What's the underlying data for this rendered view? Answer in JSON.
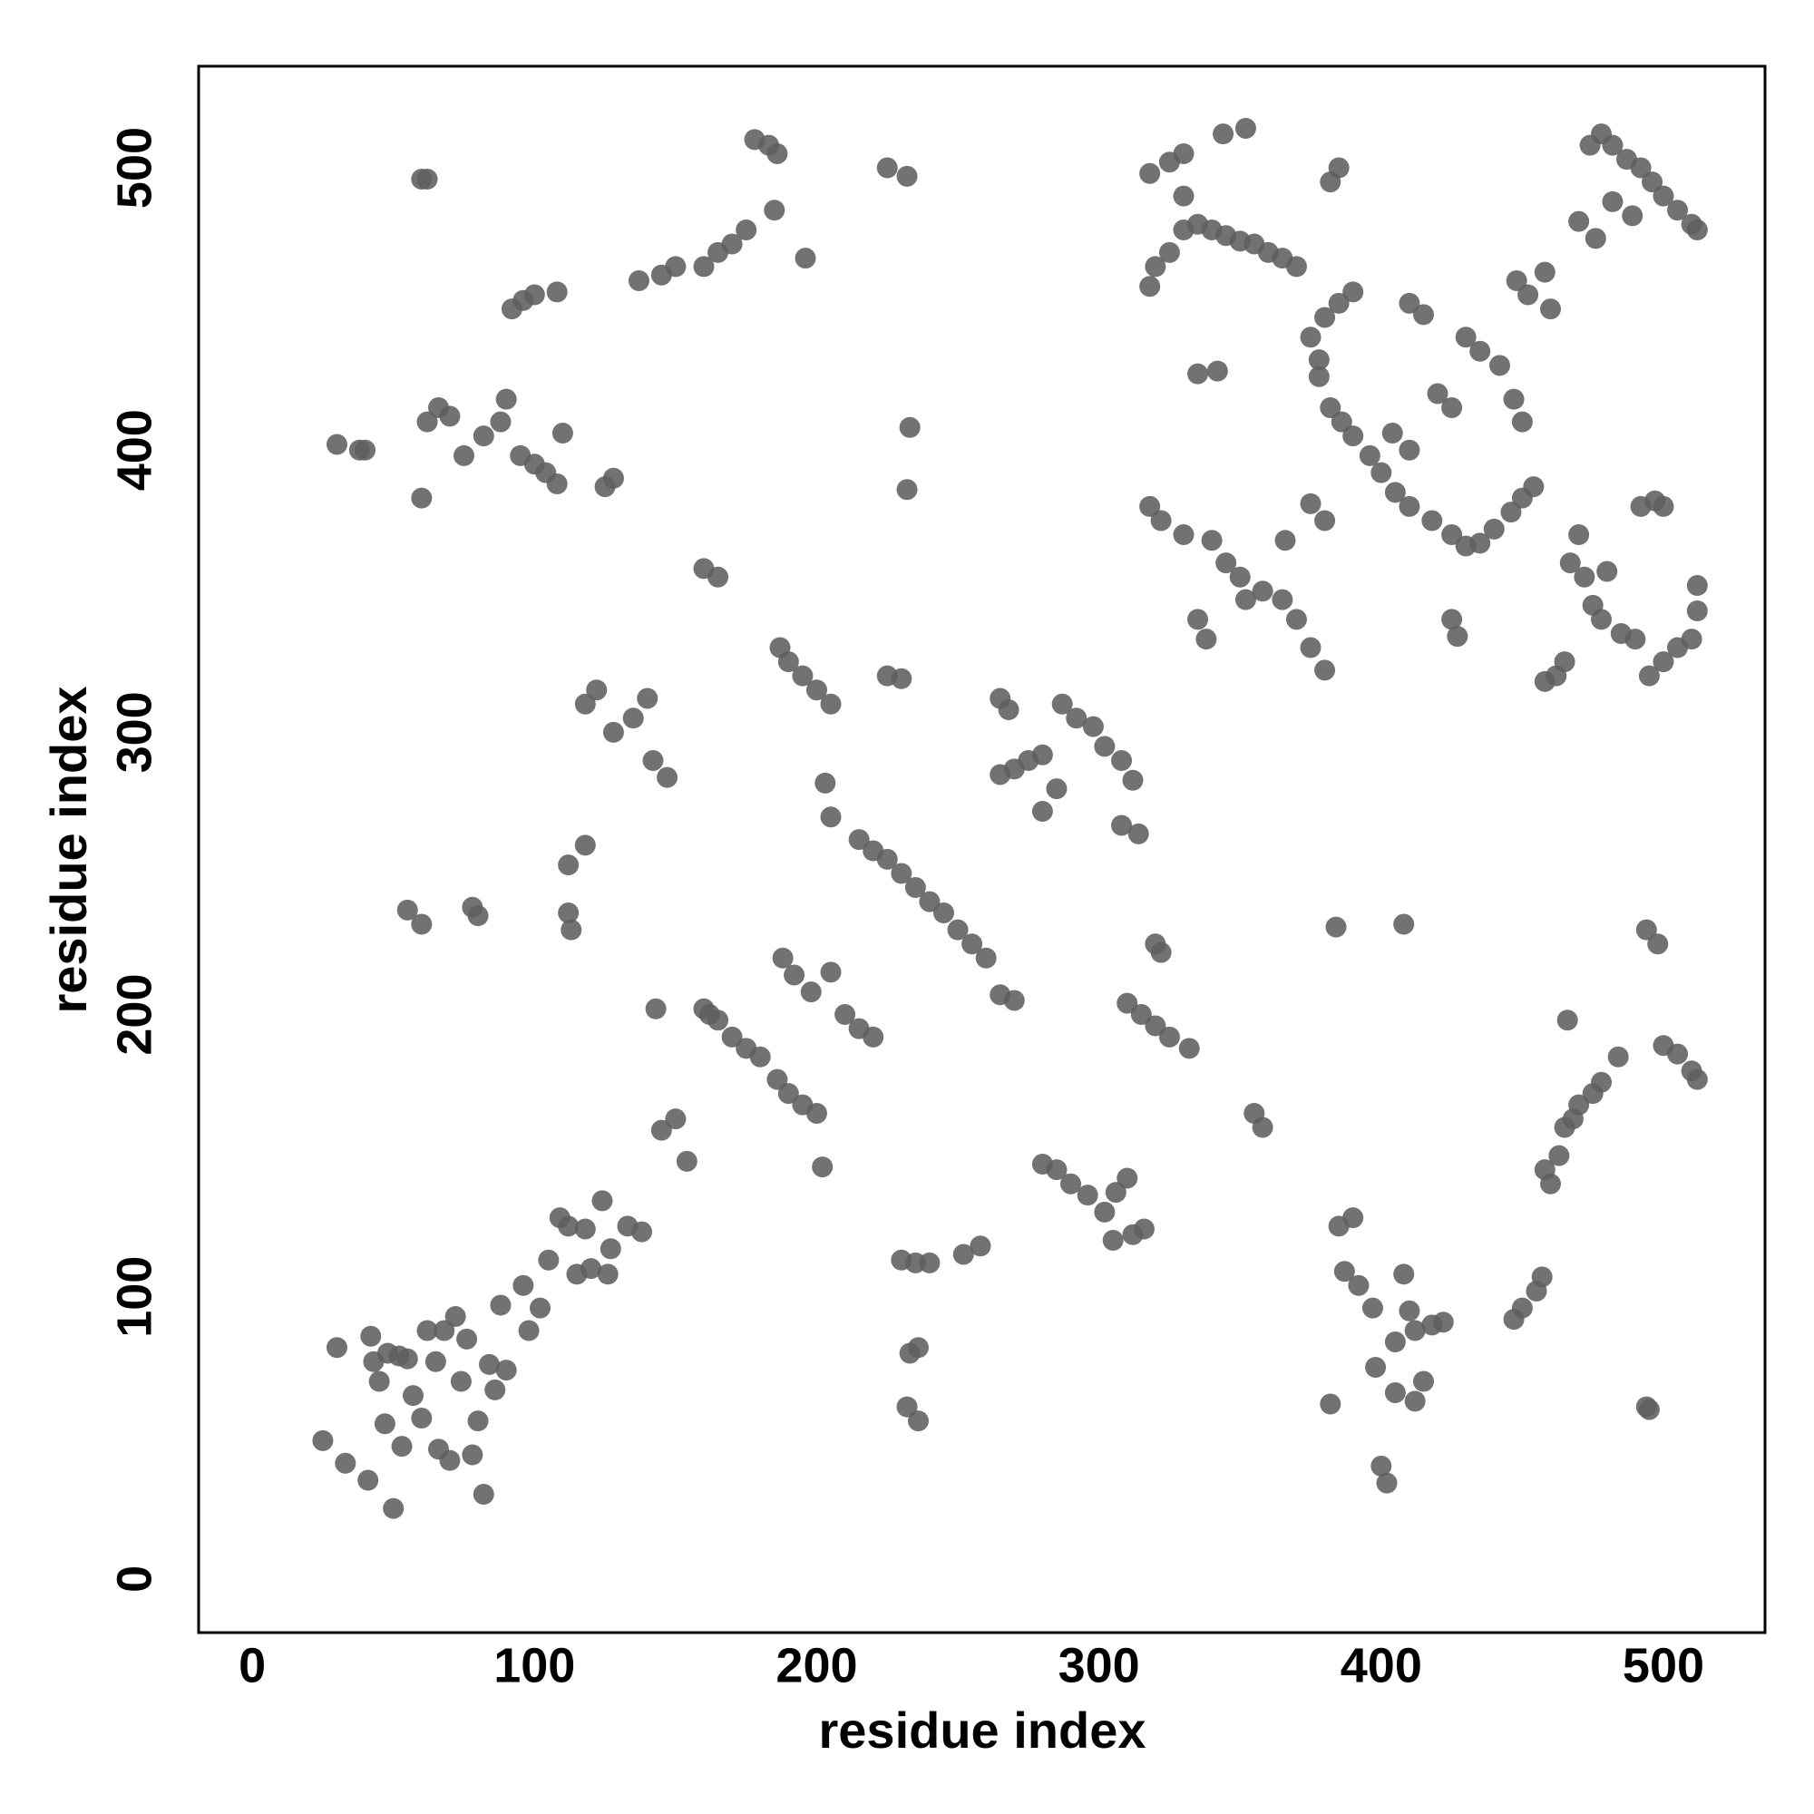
{
  "chart_data": {
    "type": "scatter",
    "x_label": "residue index",
    "y_label": "residue index",
    "xlim": [
      -19,
      536
    ],
    "ylim": [
      -19,
      536
    ],
    "xticks": [
      0,
      100,
      200,
      300,
      400,
      500
    ],
    "yticks": [
      0,
      100,
      200,
      300,
      400,
      500
    ],
    "color": "#5f5f5f",
    "x": [
      25,
      30,
      33,
      41,
      42,
      43,
      45,
      47,
      48,
      50,
      52,
      53,
      55,
      57,
      60,
      62,
      65,
      66,
      68,
      70,
      72,
      74,
      76,
      78,
      80,
      82,
      84,
      86,
      88,
      90,
      96,
      98,
      102,
      105,
      109,
      112,
      115,
      118,
      120,
      124,
      126,
      127,
      133,
      138,
      145,
      150,
      154,
      160,
      162,
      165,
      170,
      175,
      180,
      186,
      190,
      195,
      200,
      202,
      188,
      192,
      198,
      205,
      210,
      215,
      220,
      143,
      160,
      165,
      187,
      190,
      195,
      200,
      205,
      203,
      205,
      215,
      220,
      225,
      230,
      235,
      240,
      245,
      250,
      255,
      260,
      265,
      270,
      225,
      230,
      118,
      122,
      128,
      135,
      140,
      142,
      147,
      112,
      118,
      112,
      113,
      55,
      60,
      78,
      80,
      30,
      38,
      40,
      60,
      62,
      66,
      70,
      75,
      82,
      88,
      90,
      95,
      100,
      104,
      108,
      110,
      125,
      128,
      92,
      96,
      100,
      108,
      137,
      145,
      150,
      160,
      165,
      170,
      175,
      178,
      183,
      186,
      185,
      196,
      60,
      62,
      225,
      232,
      233,
      232,
      265,
      268,
      265,
      270,
      275,
      280,
      280,
      285,
      287,
      292,
      298,
      302,
      308,
      312,
      308,
      314,
      320,
      322,
      310,
      315,
      320,
      325,
      332,
      280,
      285,
      290,
      296,
      302,
      306,
      310,
      305,
      312,
      316,
      230,
      235,
      240,
      236,
      233,
      232,
      236,
      252,
      258,
      355,
      358,
      335,
      338,
      318,
      322,
      330,
      340,
      345,
      350,
      352,
      358,
      365,
      370,
      375,
      380,
      366,
      375,
      380,
      318,
      320,
      325,
      330,
      335,
      340,
      345,
      350,
      355,
      360,
      365,
      370,
      318,
      325,
      330,
      344,
      352,
      330,
      335,
      342,
      375,
      378,
      380,
      385,
      390,
      378,
      382,
      386,
      390,
      396,
      400,
      405,
      410,
      418,
      425,
      430,
      435,
      440,
      446,
      450,
      454,
      410,
      415,
      420,
      425,
      430,
      435,
      442,
      447,
      450,
      448,
      452,
      458,
      460,
      385,
      382,
      404,
      410,
      384,
      408,
      382,
      385,
      390,
      387,
      392,
      397,
      398,
      400,
      402,
      405,
      408,
      410,
      412,
      415,
      418,
      422,
      412,
      405,
      425,
      427,
      447,
      450,
      455,
      457,
      458,
      460,
      463,
      465,
      468,
      470,
      475,
      478,
      484,
      466,
      458,
      462,
      465,
      467,
      470,
      472,
      475,
      478,
      480,
      485,
      490,
      495,
      500,
      505,
      510,
      512,
      512,
      492,
      497,
      500,
      474,
      478,
      482,
      487,
      492,
      496,
      500,
      505,
      510,
      512,
      470,
      476,
      482,
      489,
      494,
      498,
      500,
      505,
      510,
      512,
      494,
      495
    ],
    "values": [
      49,
      82,
      41,
      35,
      86,
      77,
      70,
      55,
      80,
      25,
      79,
      47,
      78,
      65,
      57,
      88,
      77,
      46,
      88,
      42,
      93,
      70,
      85,
      44,
      56,
      30,
      76,
      67,
      97,
      74,
      104,
      88,
      96,
      113,
      128,
      125,
      108,
      124,
      110,
      134,
      108,
      117,
      125,
      123,
      159,
      163,
      148,
      202,
      200,
      198,
      192,
      188,
      185,
      177,
      172,
      168,
      165,
      146,
      220,
      214,
      208,
      215,
      200,
      195,
      192,
      202,
      358,
      355,
      330,
      325,
      320,
      315,
      310,
      282,
      270,
      262,
      258,
      255,
      250,
      245,
      240,
      236,
      230,
      225,
      220,
      207,
      205,
      320,
      319,
      310,
      315,
      300,
      305,
      312,
      290,
      284,
      253,
      260,
      236,
      230,
      237,
      232,
      238,
      235,
      402,
      400,
      400,
      383,
      410,
      415,
      412,
      398,
      405,
      410,
      418,
      398,
      395,
      392,
      388,
      406,
      387,
      390,
      450,
      453,
      455,
      456,
      460,
      462,
      465,
      465,
      470,
      473,
      478,
      510,
      508,
      505,
      485,
      468,
      496,
      496,
      500,
      497,
      408,
      386,
      312,
      308,
      285,
      287,
      290,
      292,
      272,
      280,
      310,
      305,
      302,
      295,
      290,
      283,
      267,
      264,
      225,
      222,
      204,
      200,
      196,
      192,
      188,
      147,
      145,
      140,
      136,
      130,
      137,
      142,
      120,
      122,
      124,
      113,
      112,
      112,
      82,
      80,
      61,
      56,
      115,
      118,
      165,
      160,
      340,
      333,
      380,
      375,
      370,
      368,
      360,
      355,
      347,
      350,
      347,
      340,
      330,
      322,
      368,
      381,
      375,
      458,
      465,
      470,
      478,
      480,
      478,
      476,
      474,
      473,
      470,
      468,
      465,
      498,
      502,
      505,
      512,
      514,
      490,
      427,
      428,
      440,
      432,
      447,
      452,
      456,
      426,
      415,
      410,
      405,
      398,
      392,
      385,
      380,
      375,
      370,
      366,
      367,
      372,
      378,
      383,
      387,
      452,
      448,
      420,
      415,
      440,
      435,
      430,
      418,
      410,
      460,
      455,
      463,
      450,
      500,
      495,
      406,
      400,
      231,
      232,
      62,
      125,
      128,
      109,
      104,
      96,
      75,
      40,
      34,
      84,
      108,
      95,
      88,
      70,
      90,
      91,
      63,
      66,
      340,
      334,
      92,
      96,
      102,
      107,
      145,
      140,
      150,
      160,
      163,
      168,
      172,
      176,
      185,
      198,
      318,
      320,
      325,
      360,
      370,
      355,
      345,
      340,
      357,
      335,
      333,
      320,
      325,
      330,
      333,
      343,
      352,
      380,
      382,
      380,
      508,
      512,
      508,
      503,
      500,
      495,
      490,
      485,
      480,
      478,
      481,
      475,
      488,
      483,
      230,
      225,
      189,
      186,
      180,
      177,
      61,
      60
    ]
  }
}
